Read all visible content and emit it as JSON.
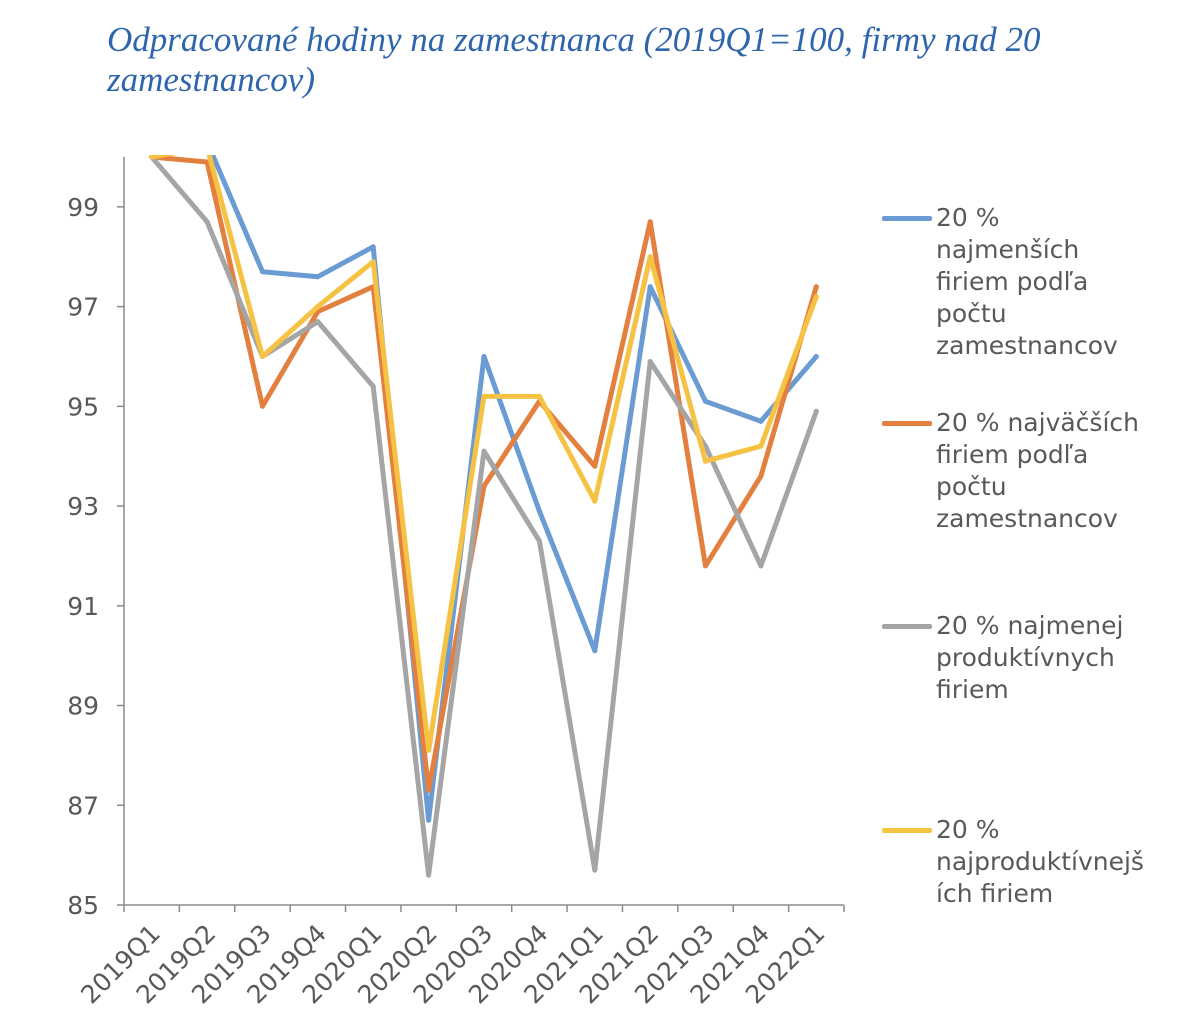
{
  "chart_data": {
    "type": "line",
    "title": "Odpracované hodiny na zamestnanca (2019Q1=100, firmy nad 20 zamestnancov)",
    "categories": [
      "2019Q1",
      "2019Q2",
      "2019Q3",
      "2019Q4",
      "2020Q1",
      "2020Q2",
      "2020Q3",
      "2020Q4",
      "2021Q1",
      "2021Q2",
      "2021Q3",
      "2021Q4",
      "2022Q1"
    ],
    "ylim": [
      85,
      100
    ],
    "y_ticks": [
      85,
      87,
      89,
      91,
      93,
      95,
      97,
      99
    ],
    "grid": false,
    "legend_position": "right",
    "series": [
      {
        "name": "20 %\nnajmenších\nfiriem podľa\npočtu\nzamestnancov",
        "color": "#6A9BD3",
        "values": [
          100,
          100.3,
          97.7,
          97.6,
          98.2,
          86.7,
          96.0,
          92.9,
          90.1,
          97.4,
          95.1,
          94.7,
          96.0
        ]
      },
      {
        "name": "20 % najväčších\nfiriem podľa\npočtu\nzamestnancov",
        "color": "#E4803F",
        "values": [
          100,
          99.9,
          95.0,
          96.9,
          97.4,
          87.3,
          93.4,
          95.1,
          93.8,
          98.7,
          91.8,
          93.6,
          97.4
        ]
      },
      {
        "name": "20 % najmenej\nproduktívnych\nfiriem",
        "color": "#A5A5A5",
        "values": [
          100,
          98.7,
          96.0,
          96.7,
          95.4,
          85.6,
          94.1,
          92.3,
          85.7,
          95.9,
          94.2,
          91.8,
          94.9
        ]
      },
      {
        "name": "20 %\nnajproduktívnejš\ních firiem",
        "color": "#F6C244",
        "values": [
          100,
          100.2,
          96.0,
          97.0,
          97.9,
          88.1,
          95.2,
          95.2,
          93.1,
          98.0,
          93.9,
          94.2,
          97.2
        ]
      }
    ]
  }
}
